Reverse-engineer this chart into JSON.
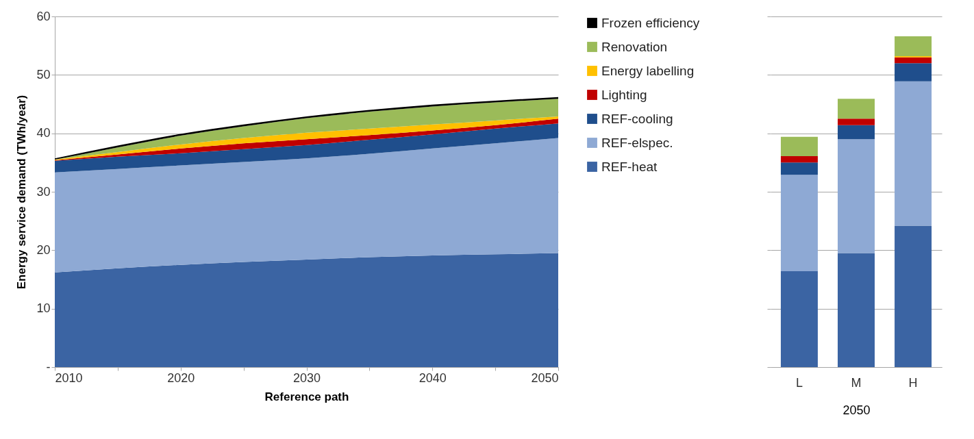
{
  "chart_data": [
    {
      "type": "area",
      "xlabel": "Reference path",
      "ylabel": "Energy service demand (TWh/year)",
      "x": [
        2010,
        2015,
        2020,
        2025,
        2030,
        2035,
        2040,
        2045,
        2050
      ],
      "stacked": true,
      "xlim": [
        2010,
        2050
      ],
      "xticks": [
        2010,
        {
          "value": 2015,
          "label": null
        },
        2020,
        {
          "value": 2025,
          "label": null
        },
        2030,
        {
          "value": 2035,
          "label": null
        },
        2040,
        {
          "value": 2045,
          "label": null
        },
        2050
      ],
      "ylim": [
        0,
        60
      ],
      "yticks": [
        {
          "value": 0,
          "label": "-"
        },
        10,
        20,
        30,
        40,
        50,
        60
      ],
      "grid": "y",
      "legend": "right",
      "series": [
        {
          "name": "REF-heat",
          "color": "#3b64a3",
          "values": [
            16.2,
            16.9,
            17.5,
            18.0,
            18.4,
            18.8,
            19.1,
            19.3,
            19.5
          ]
        },
        {
          "name": "REF-elspec.",
          "color": "#8ea9d4",
          "values": [
            17.1,
            17.0,
            17.0,
            17.1,
            17.3,
            17.7,
            18.3,
            19.0,
            19.7
          ]
        },
        {
          "name": "REF-cooling",
          "color": "#1f4e8c",
          "values": [
            2.0,
            2.1,
            2.1,
            2.2,
            2.3,
            2.4,
            2.4,
            2.5,
            2.5
          ]
        },
        {
          "name": "Lighting",
          "color": "#c00000",
          "values": [
            0.1,
            0.4,
            0.8,
            1.0,
            1.0,
            0.8,
            0.7,
            0.6,
            0.8
          ]
        },
        {
          "name": "Energy labelling",
          "color": "#ffc000",
          "values": [
            0.1,
            0.4,
            0.7,
            0.9,
            1.1,
            1.1,
            1.0,
            0.8,
            0.4
          ]
        },
        {
          "name": "Renovation",
          "color": "#9bbb59",
          "values": [
            0.0,
            0.8,
            1.5,
            2.0,
            2.5,
            2.9,
            3.1,
            3.1,
            3.0
          ]
        },
        {
          "name": "Frozen efficiency",
          "color": "#000000",
          "values": [
            0.2,
            0.3,
            0.3,
            0.3,
            0.3,
            0.3,
            0.3,
            0.3,
            0.3
          ]
        }
      ]
    },
    {
      "type": "bar",
      "xlabel": "2050",
      "categories": [
        "L",
        "M",
        "H"
      ],
      "stacked": true,
      "ylim": [
        0,
        60
      ],
      "yticks": [
        0,
        10,
        20,
        30,
        40,
        50,
        60
      ],
      "grid": "y",
      "tick_labels": "x",
      "series": [
        {
          "color": "#3b64a3",
          "values": [
            16.4,
            19.5,
            24.2
          ]
        },
        {
          "color": "#8ea9d4",
          "values": [
            16.5,
            19.5,
            24.7
          ]
        },
        {
          "color": "#1f4e8c",
          "values": [
            2.1,
            2.4,
            3.1
          ]
        },
        {
          "color": "#c00000",
          "values": [
            1.1,
            1.1,
            1.0
          ]
        },
        {
          "color": "#ffc000",
          "values": [
            0,
            0,
            0.2
          ]
        },
        {
          "color": "#9bbb59",
          "values": [
            3.3,
            3.4,
            3.4
          ]
        }
      ]
    }
  ]
}
